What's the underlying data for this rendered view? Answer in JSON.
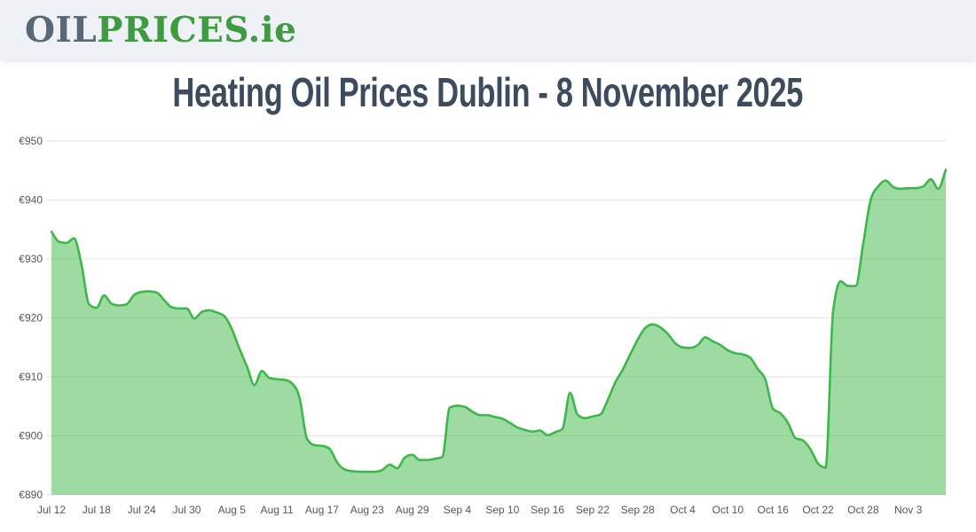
{
  "header": {
    "logo": {
      "oil": "OIL",
      "prices": "PRICES",
      "suffix": ".ie"
    }
  },
  "page": {
    "title": "Heating Oil Prices Dublin - 8 November 2025"
  },
  "chart_data": {
    "type": "area",
    "title": "Heating Oil Prices Dublin - 8 November 2025",
    "x_start": "Jul 12",
    "x_end": "Nov 8",
    "x_step_days": 1,
    "values": [
      934.6,
      932.9,
      932.7,
      933.5,
      929.0,
      922.3,
      921.7,
      923.8,
      922.4,
      922.1,
      922.3,
      923.9,
      924.4,
      924.5,
      924.3,
      923.0,
      921.8,
      921.6,
      921.6,
      919.9,
      921.0,
      921.3,
      920.9,
      920.3,
      918.1,
      914.8,
      911.8,
      908.6,
      911.0,
      909.8,
      909.6,
      909.5,
      908.9,
      906.5,
      899.5,
      898.4,
      898.3,
      897.8,
      895.5,
      894.3,
      894.0,
      893.9,
      893.9,
      893.9,
      894.2,
      895.1,
      894.5,
      896.3,
      896.8,
      895.9,
      895.9,
      896.1,
      896.4,
      904.8,
      905.1,
      904.9,
      904.1,
      903.5,
      903.5,
      903.2,
      902.9,
      902.2,
      901.4,
      901.0,
      900.7,
      900.9,
      900.1,
      900.6,
      901.2,
      907.3,
      903.6,
      903.0,
      903.3,
      903.6,
      906.0,
      909.0,
      911.2,
      913.8,
      916.3,
      918.3,
      918.9,
      918.4,
      917.3,
      915.7,
      915.0,
      914.9,
      915.4,
      916.7,
      916.0,
      915.4,
      914.5,
      914.0,
      913.8,
      913.2,
      911.3,
      909.5,
      904.6,
      903.8,
      902.2,
      899.6,
      899.2,
      897.7,
      895.3,
      894.6,
      921.0,
      926.2,
      925.4,
      925.4,
      932.5,
      940.0,
      942.3,
      943.3,
      942.2,
      941.9,
      942.0,
      942.0,
      942.3,
      943.5,
      941.9,
      945.1
    ],
    "ylim": [
      890,
      950
    ],
    "y_ticks": [
      950,
      940,
      930,
      920,
      910,
      900,
      890
    ],
    "y_tick_labels": [
      "€950",
      "€940",
      "€930",
      "€920",
      "€910",
      "€900",
      "€890"
    ],
    "x_tick_step_days": 6,
    "x_tick_labels": [
      "Jul 12",
      "Jul 18",
      "Jul 24",
      "Jul 30",
      "Aug 5",
      "Aug 11",
      "Aug 17",
      "Aug 23",
      "Aug 29",
      "Sep 4",
      "Sep 10",
      "Sep 16",
      "Sep 22",
      "Sep 28",
      "Oct 4",
      "Oct 10",
      "Oct 16",
      "Oct 22",
      "Oct 28",
      "Nov 3"
    ],
    "grid": true,
    "legend": "none",
    "colors": {
      "line": "#3db848",
      "fill": "rgba(61,184,72,0.5)",
      "grid": "#e2e2e2",
      "axis_text": "#53575c",
      "title": "#3d4b5e",
      "logo_gray": "#5a6875",
      "logo_green": "#3f9b3f",
      "header_bg": "#eef1f5"
    }
  }
}
